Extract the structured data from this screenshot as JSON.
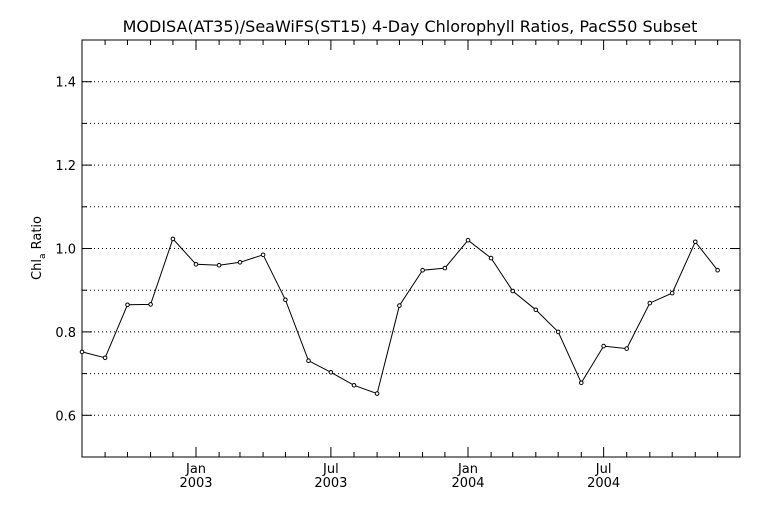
{
  "chart_data": {
    "type": "line",
    "title": "MODISA(AT35)/SeaWiFS(ST15) 4-Day Chlorophyll Ratios, PacS50 Subset",
    "ylabel_main": "Chl",
    "ylabel_sub": "a",
    "ylabel_rest": " Ratio",
    "xlabel": "",
    "ylim": [
      0.5,
      1.5
    ],
    "xlim": [
      "2002-08-01",
      "2004-12-31"
    ],
    "y_ticks": [
      {
        "value": 0.6,
        "label": "0.6"
      },
      {
        "value": 0.8,
        "label": "0.8"
      },
      {
        "value": 1.0,
        "label": "1.0"
      },
      {
        "value": 1.2,
        "label": "1.2"
      },
      {
        "value": 1.4,
        "label": "1.4"
      }
    ],
    "y_gridlines": [
      0.6,
      0.7,
      0.8,
      0.9,
      1.0,
      1.1,
      1.2,
      1.3,
      1.4
    ],
    "x_ticks": [
      {
        "date": "2003-01-01",
        "month": "Jan",
        "year": "2003"
      },
      {
        "date": "2003-07-01",
        "month": "Jul",
        "year": "2003"
      },
      {
        "date": "2004-01-01",
        "month": "Jan",
        "year": "2004"
      },
      {
        "date": "2004-07-01",
        "month": "Jul",
        "year": "2004"
      }
    ],
    "grid": "horizontal dotted",
    "color": "#000000",
    "series": [
      {
        "points": [
          {
            "x": "2002-08-01",
            "y": 0.752
          },
          {
            "x": "2002-09-01",
            "y": 0.738
          },
          {
            "x": "2002-10-01",
            "y": 0.865
          },
          {
            "x": "2002-11-01",
            "y": 0.866
          },
          {
            "x": "2002-12-01",
            "y": 1.023
          },
          {
            "x": "2003-01-01",
            "y": 0.962
          },
          {
            "x": "2003-02-01",
            "y": 0.96
          },
          {
            "x": "2003-03-01",
            "y": 0.967
          },
          {
            "x": "2003-04-01",
            "y": 0.985
          },
          {
            "x": "2003-05-01",
            "y": 0.877
          },
          {
            "x": "2003-06-01",
            "y": 0.731
          },
          {
            "x": "2003-07-01",
            "y": 0.703
          },
          {
            "x": "2003-08-01",
            "y": 0.672
          },
          {
            "x": "2003-09-01",
            "y": 0.652
          },
          {
            "x": "2003-10-01",
            "y": 0.863
          },
          {
            "x": "2003-11-01",
            "y": 0.948
          },
          {
            "x": "2003-12-01",
            "y": 0.953
          },
          {
            "x": "2004-01-01",
            "y": 1.02
          },
          {
            "x": "2004-02-01",
            "y": 0.977
          },
          {
            "x": "2004-03-01",
            "y": 0.898
          },
          {
            "x": "2004-04-01",
            "y": 0.853
          },
          {
            "x": "2004-05-01",
            "y": 0.8
          },
          {
            "x": "2004-06-01",
            "y": 0.678
          },
          {
            "x": "2004-07-01",
            "y": 0.766
          },
          {
            "x": "2004-08-01",
            "y": 0.76
          },
          {
            "x": "2004-09-01",
            "y": 0.869
          },
          {
            "x": "2004-10-01",
            "y": 0.893
          },
          {
            "x": "2004-11-01",
            "y": 1.016
          },
          {
            "x": "2004-12-01",
            "y": 0.948
          }
        ]
      }
    ]
  }
}
